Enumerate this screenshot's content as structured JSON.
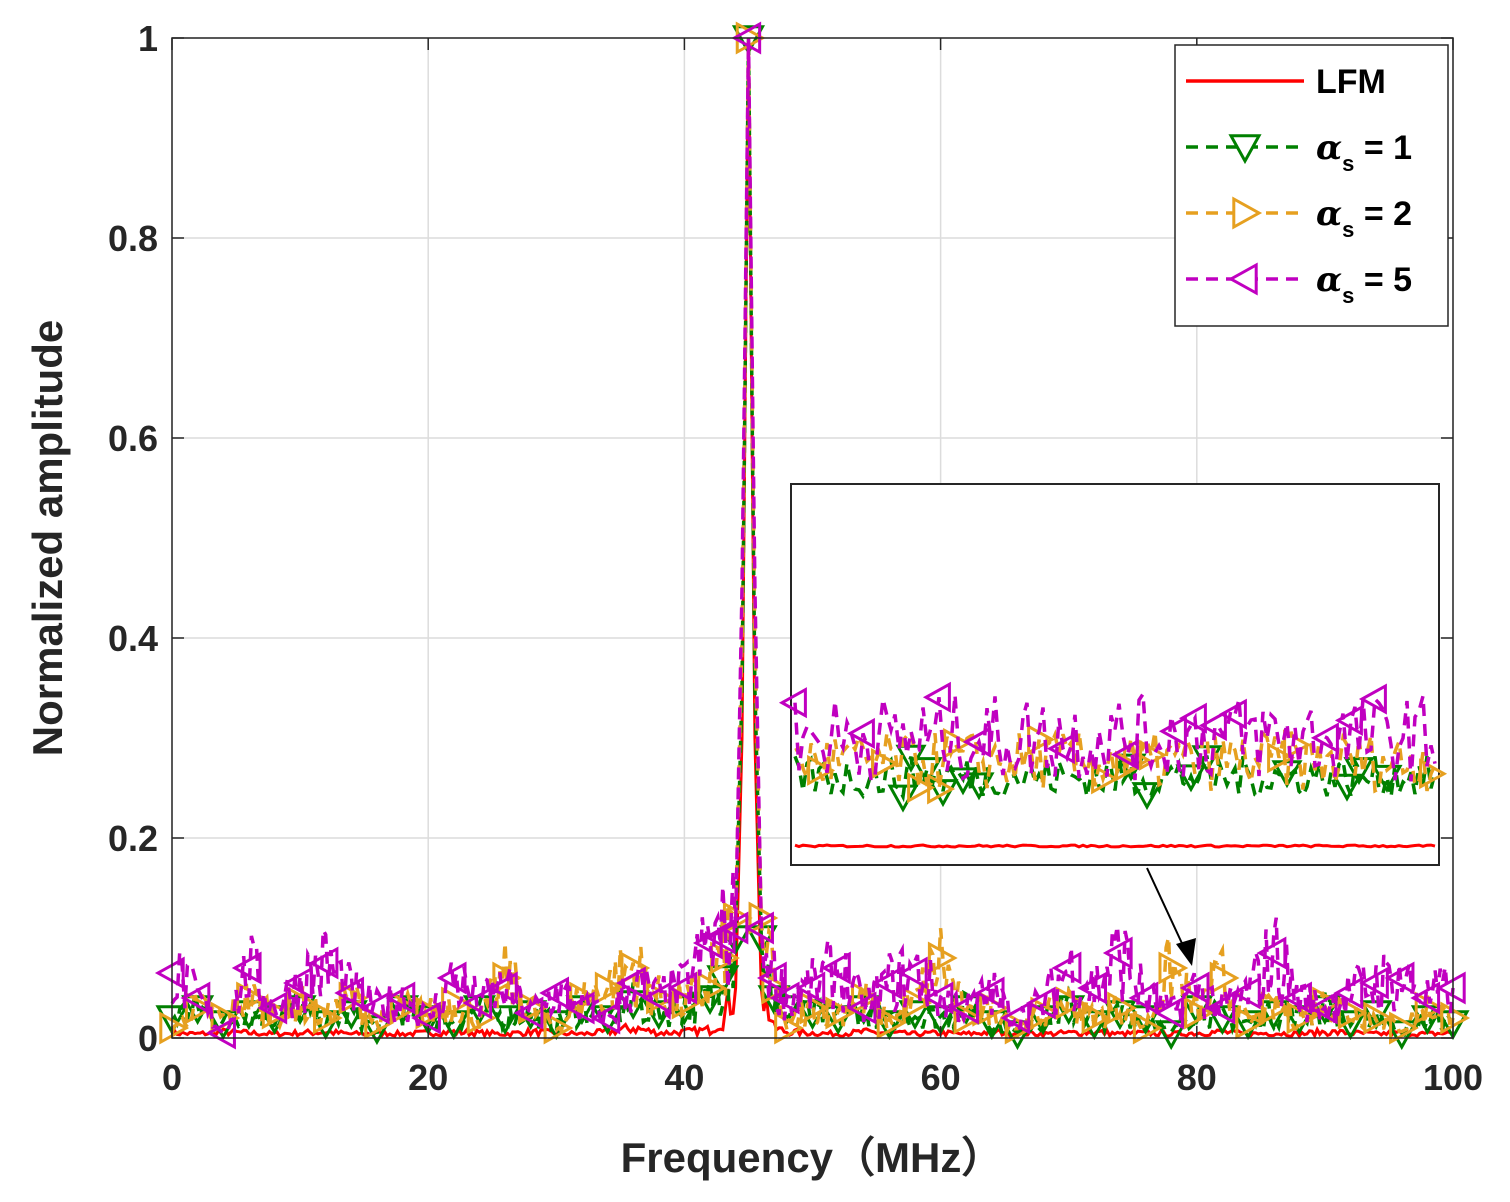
{
  "chart_data": {
    "type": "line",
    "xlabel": "Frequency（MHz）",
    "ylabel": "Normalized amplitude",
    "xlim": [
      0,
      100
    ],
    "ylim": [
      0,
      1
    ],
    "xticks": [
      "0",
      "20",
      "40",
      "60",
      "80",
      "100"
    ],
    "yticks": [
      "0",
      "0.2",
      "0.4",
      "0.6",
      "0.8",
      "1"
    ],
    "grid": true,
    "legend_position": "top-right",
    "peak_frequency": 45,
    "x": [
      0,
      2,
      4,
      6,
      8,
      10,
      12,
      14,
      16,
      18,
      20,
      22,
      24,
      26,
      28,
      30,
      32,
      34,
      36,
      38,
      40,
      42,
      43,
      44,
      44.5,
      45,
      45.5,
      46,
      47,
      48,
      50,
      52,
      54,
      56,
      58,
      60,
      62,
      64,
      66,
      68,
      70,
      72,
      74,
      76,
      78,
      80,
      82,
      84,
      86,
      88,
      90,
      92,
      94,
      96,
      98,
      100
    ],
    "series": [
      {
        "name": "LFM",
        "color": "#ff0000",
        "line": "solid",
        "marker": "none",
        "values": [
          0.005,
          0.004,
          0.006,
          0.005,
          0.004,
          0.005,
          0.006,
          0.004,
          0.005,
          0.004,
          0.005,
          0.006,
          0.005,
          0.004,
          0.006,
          0.005,
          0.004,
          0.006,
          0.01,
          0.005,
          0.006,
          0.008,
          0.02,
          0.05,
          0.3,
          1.0,
          0.3,
          0.05,
          0.01,
          0.006,
          0.005,
          0.004,
          0.006,
          0.005,
          0.004,
          0.005,
          0.004,
          0.006,
          0.005,
          0.004,
          0.005,
          0.006,
          0.004,
          0.005,
          0.004,
          0.005,
          0.006,
          0.004,
          0.005,
          0.004,
          0.006,
          0.005,
          0.004,
          0.005,
          0.004,
          0.005
        ]
      },
      {
        "name": "α_s = 1",
        "color": "#008000",
        "line": "dashed",
        "marker": "triangle-down",
        "values": [
          0.02,
          0.03,
          0.015,
          0.025,
          0.02,
          0.03,
          0.015,
          0.025,
          0.01,
          0.03,
          0.02,
          0.015,
          0.03,
          0.02,
          0.025,
          0.015,
          0.03,
          0.02,
          0.035,
          0.025,
          0.03,
          0.04,
          0.06,
          0.1,
          0.35,
          1.0,
          0.35,
          0.1,
          0.04,
          0.03,
          0.025,
          0.02,
          0.03,
          0.015,
          0.025,
          0.02,
          0.03,
          0.015,
          0.005,
          0.02,
          0.03,
          0.015,
          0.025,
          0.02,
          0.005,
          0.03,
          0.02,
          0.015,
          0.025,
          0.02,
          0.03,
          0.015,
          0.025,
          0.005,
          0.02,
          0.015
        ]
      },
      {
        "name": "α_s = 2",
        "color": "#e6a020",
        "line": "dashed",
        "marker": "triangle-right",
        "values": [
          0.01,
          0.03,
          0.02,
          0.04,
          0.025,
          0.035,
          0.02,
          0.04,
          0.015,
          0.03,
          0.025,
          0.035,
          0.02,
          0.06,
          0.03,
          0.01,
          0.04,
          0.05,
          0.07,
          0.04,
          0.035,
          0.05,
          0.08,
          0.12,
          0.4,
          1.0,
          0.4,
          0.12,
          0.05,
          0.01,
          0.03,
          0.025,
          0.04,
          0.015,
          0.035,
          0.08,
          0.02,
          0.03,
          0.01,
          0.025,
          0.035,
          0.02,
          0.03,
          0.01,
          0.07,
          0.025,
          0.06,
          0.015,
          0.03,
          0.02,
          0.035,
          0.025,
          0.02,
          0.01,
          0.03,
          0.02
        ]
      },
      {
        "name": "α_s = 5",
        "color": "#c000c0",
        "line": "dashed",
        "marker": "triangle-left",
        "values": [
          0.065,
          0.04,
          0.005,
          0.07,
          0.03,
          0.055,
          0.075,
          0.045,
          0.03,
          0.04,
          0.02,
          0.06,
          0.035,
          0.05,
          0.025,
          0.045,
          0.03,
          0.02,
          0.055,
          0.04,
          0.05,
          0.095,
          0.1,
          0.11,
          0.45,
          1.0,
          0.45,
          0.11,
          0.06,
          0.04,
          0.05,
          0.07,
          0.03,
          0.055,
          0.065,
          0.04,
          0.03,
          0.045,
          0.02,
          0.035,
          0.07,
          0.05,
          0.085,
          0.04,
          0.025,
          0.05,
          0.03,
          0.045,
          0.085,
          0.04,
          0.03,
          0.045,
          0.055,
          0.06,
          0.04,
          0.05
        ]
      }
    ]
  },
  "legend": {
    "items": [
      {
        "label": "LFM",
        "symbol": "",
        "sub": "",
        "rest": ""
      },
      {
        "label": "",
        "symbol": "α",
        "sub": "s",
        "rest": " = 1"
      },
      {
        "label": "",
        "symbol": "α",
        "sub": "s",
        "rest": " = 2"
      },
      {
        "label": "",
        "symbol": "α",
        "sub": "s",
        "rest": " = 5"
      }
    ]
  },
  "inset": {
    "description_visible": false
  }
}
